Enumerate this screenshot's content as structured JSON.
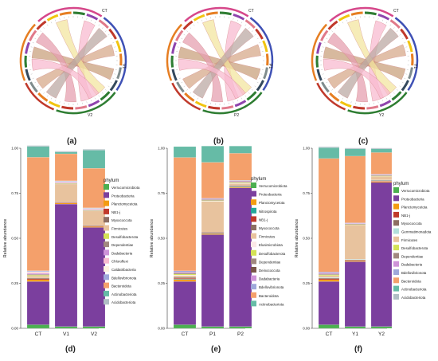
{
  "panels": [
    {
      "label": "(a)",
      "ring_labels": [
        "CT",
        "V1",
        "V2"
      ]
    },
    {
      "label": "(b)",
      "ring_labels": [
        "CT",
        "P1",
        "P2"
      ]
    },
    {
      "label": "(c)",
      "ring_labels": [
        "CT",
        "Y1",
        "Y2"
      ]
    }
  ],
  "chord_colors": {
    "ring_segments": [
      "#2e7d32",
      "#8e44ad",
      "#e07a8a",
      "#c0392b",
      "#f1c40f",
      "#e67e22",
      "#7f8c8d",
      "#34495e"
    ],
    "outer_segments": [
      "#d6478a",
      "#3f51b5",
      "#2e7d32",
      "#c0392b",
      "#e67e22"
    ],
    "ribbons": [
      "#f8bbd0",
      "#d7a98b",
      "#c9a27e",
      "#f3e5a0",
      "#e6a0b0",
      "#bcaaa4"
    ]
  },
  "chart_data": [
    {
      "type": "bar",
      "stacked": true,
      "panel_label": "(d)",
      "ylabel": "Relative abundance",
      "yticks": [
        "0.00",
        "0.25",
        "0.50",
        "0.75",
        "1.00"
      ],
      "ylim": [
        0,
        1
      ],
      "categories": [
        "CT",
        "V1",
        "V2"
      ],
      "legend_title": "phylum",
      "series": [
        {
          "name": "Verrucomicrobiota",
          "color": "#4caf50",
          "values": [
            0.02,
            0.01,
            0.01
          ]
        },
        {
          "name": "Proteobacteria",
          "color": "#7b3f9e",
          "values": [
            0.24,
            0.68,
            0.55
          ]
        },
        {
          "name": "Planctomycetota",
          "color": "#f39c12",
          "values": [
            0.01,
            0.005,
            0.005
          ]
        },
        {
          "name": "NB1-j",
          "color": "#c0392b",
          "values": [
            0.005,
            0.003,
            0.003
          ]
        },
        {
          "name": "Myxococcota",
          "color": "#8d6e63",
          "values": [
            0.005,
            0.003,
            0.003
          ]
        },
        {
          "name": "Firmicutes",
          "color": "#e8c39e",
          "values": [
            0.01,
            0.1,
            0.08
          ]
        },
        {
          "name": "Desulfobacterota",
          "color": "#d4e157",
          "values": [
            0.005,
            0.003,
            0.003
          ]
        },
        {
          "name": "Dependentiae",
          "color": "#a1887f",
          "values": [
            0.005,
            0.003,
            0.003
          ]
        },
        {
          "name": "Dadabacteria",
          "color": "#ce93d8",
          "values": [
            0.005,
            0.003,
            0.003
          ]
        },
        {
          "name": "Chloroflexi",
          "color": "#f8bbd0",
          "values": [
            0.005,
            0.003,
            0.003
          ]
        },
        {
          "name": "Caldatribacteria",
          "color": "#fff3e0",
          "values": [
            0.005,
            0.003,
            0.003
          ]
        },
        {
          "name": "Bdellovibrionota",
          "color": "#9fa8da",
          "values": [
            0.005,
            0.003,
            0.003
          ]
        },
        {
          "name": "Bacteroidota",
          "color": "#f4a06b",
          "values": [
            0.63,
            0.15,
            0.22
          ]
        },
        {
          "name": "Actinobacteriota",
          "color": "#66bba6",
          "values": [
            0.06,
            0.01,
            0.1
          ]
        },
        {
          "name": "Acidobacteriota",
          "color": "#b0bec5",
          "values": [
            0.005,
            0.005,
            0.005
          ]
        }
      ]
    },
    {
      "type": "bar",
      "stacked": true,
      "panel_label": "(e)",
      "ylabel": "Relative abundance",
      "yticks": [
        "0.00",
        "0.25",
        "0.50",
        "0.75",
        "1.00"
      ],
      "ylim": [
        0,
        1
      ],
      "categories": [
        "CT",
        "P1",
        "P2"
      ],
      "legend_title": "phylum",
      "series": [
        {
          "name": "Verrucomicrobiota",
          "color": "#4caf50",
          "values": [
            0.02,
            0.01,
            0.01
          ]
        },
        {
          "name": "Proteobacteria",
          "color": "#7b3f9e",
          "values": [
            0.24,
            0.51,
            0.77
          ]
        },
        {
          "name": "Planctomycetota",
          "color": "#f39c12",
          "values": [
            0.01,
            0.005,
            0.005
          ]
        },
        {
          "name": "Nitrospirota",
          "color": "#26a69a",
          "values": [
            0.003,
            0.003,
            0.003
          ]
        },
        {
          "name": "NB1-j",
          "color": "#c0392b",
          "values": [
            0.005,
            0.003,
            0.003
          ]
        },
        {
          "name": "Myxococcota",
          "color": "#8d6e63",
          "values": [
            0.005,
            0.003,
            0.003
          ]
        },
        {
          "name": "Firmicutes",
          "color": "#e8c39e",
          "values": [
            0.01,
            0.17,
            0.01
          ]
        },
        {
          "name": "Elusimicrobiota",
          "color": "#fbe9e7",
          "values": [
            0.003,
            0.003,
            0.003
          ]
        },
        {
          "name": "Desulfobacterota",
          "color": "#d4e157",
          "values": [
            0.005,
            0.003,
            0.003
          ]
        },
        {
          "name": "Dependentiae",
          "color": "#a1887f",
          "values": [
            0.005,
            0.003,
            0.003
          ]
        },
        {
          "name": "Deinococcota",
          "color": "#795548",
          "values": [
            0.003,
            0.003,
            0.003
          ]
        },
        {
          "name": "Dadabacteria",
          "color": "#ce93d8",
          "values": [
            0.005,
            0.003,
            0.003
          ]
        },
        {
          "name": "Bdellovibrionota",
          "color": "#9fa8da",
          "values": [
            0.005,
            0.003,
            0.003
          ]
        },
        {
          "name": "Bacteroidota",
          "color": "#f4a06b",
          "values": [
            0.63,
            0.2,
            0.15
          ]
        },
        {
          "name": "Actinobacteriota",
          "color": "#66bba6",
          "values": [
            0.06,
            0.09,
            0.04
          ]
        }
      ]
    },
    {
      "type": "bar",
      "stacked": true,
      "panel_label": "(f)",
      "ylabel": "Relative abundance",
      "yticks": [
        "0.00",
        "0.25",
        "0.50",
        "0.75",
        "1.00"
      ],
      "ylim": [
        0,
        1
      ],
      "categories": [
        "CT",
        "Y1",
        "Y2"
      ],
      "legend_title": "phylum",
      "series": [
        {
          "name": "Verrucomicrobiota",
          "color": "#4caf50",
          "values": [
            0.02,
            0.01,
            0.01
          ]
        },
        {
          "name": "Proteobacteria",
          "color": "#7b3f9e",
          "values": [
            0.24,
            0.36,
            0.8
          ]
        },
        {
          "name": "Planctomycetota",
          "color": "#f39c12",
          "values": [
            0.01,
            0.005,
            0.005
          ]
        },
        {
          "name": "NB1-j",
          "color": "#c0392b",
          "values": [
            0.005,
            0.003,
            0.003
          ]
        },
        {
          "name": "Myxococcota",
          "color": "#8d6e63",
          "values": [
            0.005,
            0.003,
            0.003
          ]
        },
        {
          "name": "Gemmatimonadota",
          "color": "#b2dfdb",
          "values": [
            0.003,
            0.003,
            0.003
          ]
        },
        {
          "name": "Firmicutes",
          "color": "#e8c39e",
          "values": [
            0.01,
            0.19,
            0.02
          ]
        },
        {
          "name": "Desulfobacterota",
          "color": "#d4e157",
          "values": [
            0.005,
            0.003,
            0.003
          ]
        },
        {
          "name": "Dependentiae",
          "color": "#a1887f",
          "values": [
            0.005,
            0.003,
            0.003
          ]
        },
        {
          "name": "Dadabacteria",
          "color": "#ce93d8",
          "values": [
            0.005,
            0.003,
            0.003
          ]
        },
        {
          "name": "Bdellovibrionota",
          "color": "#9fa8da",
          "values": [
            0.005,
            0.003,
            0.003
          ]
        },
        {
          "name": "Bacteroidota",
          "color": "#f4a06b",
          "values": [
            0.63,
            0.37,
            0.12
          ]
        },
        {
          "name": "Actinobacteriota",
          "color": "#66bba6",
          "values": [
            0.06,
            0.04,
            0.02
          ]
        },
        {
          "name": "Acidobacteriota",
          "color": "#b0bec5",
          "values": [
            0.005,
            0.005,
            0.005
          ]
        }
      ]
    }
  ]
}
